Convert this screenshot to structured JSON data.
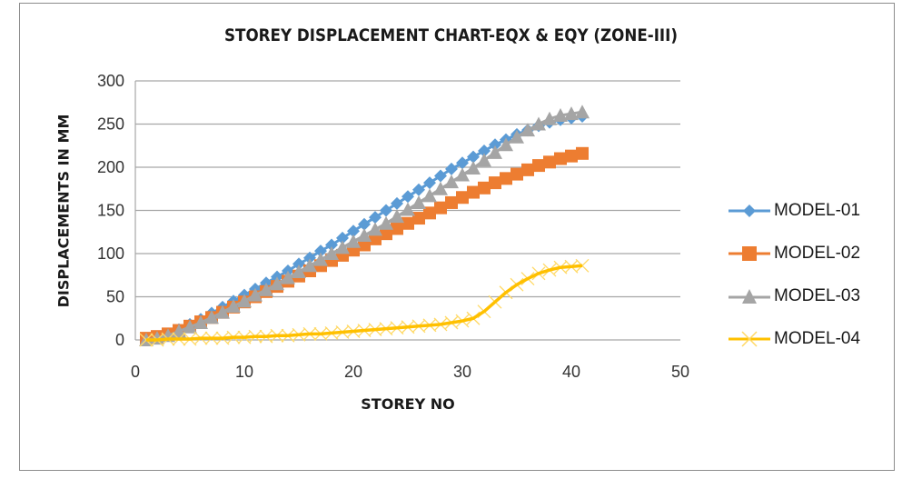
{
  "chart_data": {
    "type": "line",
    "title": "STOREY DISPLACEMENT CHART-EQX & EQY (ZONE-III)",
    "xlabel": "STOREY NO",
    "ylabel": "DISPLACEMENTS IN MM",
    "xlim": [
      0,
      50
    ],
    "ylim": [
      0,
      300
    ],
    "xticks": [
      0,
      10,
      20,
      30,
      40,
      50
    ],
    "yticks": [
      0,
      50,
      100,
      150,
      200,
      250,
      300
    ],
    "grid": {
      "horizontal": true,
      "vertical": false
    },
    "legend_position": "right",
    "x": [
      1,
      2,
      3,
      4,
      5,
      6,
      7,
      8,
      9,
      10,
      11,
      12,
      13,
      14,
      15,
      16,
      17,
      18,
      19,
      20,
      21,
      22,
      23,
      24,
      25,
      26,
      27,
      28,
      29,
      30,
      31,
      32,
      33,
      34,
      35,
      36,
      37,
      38,
      39,
      40,
      41
    ],
    "series": [
      {
        "name": "MODEL-01",
        "color": "#5B9BD5",
        "marker": "diamond",
        "values": [
          1,
          3,
          7,
          12,
          18,
          24,
          31,
          38,
          45,
          52,
          59,
          66,
          73,
          80,
          88,
          95,
          103,
          110,
          118,
          126,
          134,
          142,
          150,
          158,
          166,
          174,
          182,
          190,
          198,
          205,
          212,
          219,
          226,
          232,
          238,
          243,
          248,
          252,
          255,
          257,
          259
        ]
      },
      {
        "name": "MODEL-02",
        "color": "#ED7D31",
        "marker": "square",
        "values": [
          2,
          4,
          7,
          11,
          16,
          21,
          26,
          32,
          38,
          44,
          50,
          56,
          62,
          68,
          74,
          80,
          86,
          92,
          98,
          104,
          110,
          117,
          123,
          129,
          135,
          141,
          147,
          153,
          159,
          165,
          171,
          176,
          182,
          187,
          192,
          197,
          202,
          206,
          210,
          213,
          216
        ]
      },
      {
        "name": "MODEL-03",
        "color": "#A5A5A5",
        "marker": "triangle",
        "values": [
          0,
          2,
          5,
          10,
          15,
          20,
          26,
          32,
          39,
          45,
          52,
          58,
          65,
          72,
          79,
          86,
          93,
          100,
          107,
          114,
          121,
          128,
          135,
          143,
          151,
          159,
          167,
          175,
          183,
          191,
          199,
          208,
          217,
          226,
          235,
          243,
          250,
          256,
          260,
          262,
          264
        ]
      },
      {
        "name": "MODEL-04",
        "color": "#FFC000",
        "marker": "x",
        "values": [
          0,
          0,
          1,
          1,
          1,
          2,
          2,
          2,
          3,
          3,
          4,
          4,
          5,
          5,
          6,
          7,
          7,
          8,
          9,
          10,
          11,
          12,
          13,
          14,
          15,
          16,
          17,
          18,
          20,
          22,
          25,
          33,
          44,
          55,
          64,
          71,
          77,
          81,
          84,
          85,
          86
        ]
      }
    ]
  },
  "legend": {
    "items": [
      {
        "label": "MODEL-01"
      },
      {
        "label": "MODEL-02"
      },
      {
        "label": "MODEL-03"
      },
      {
        "label": "MODEL-04"
      }
    ]
  }
}
